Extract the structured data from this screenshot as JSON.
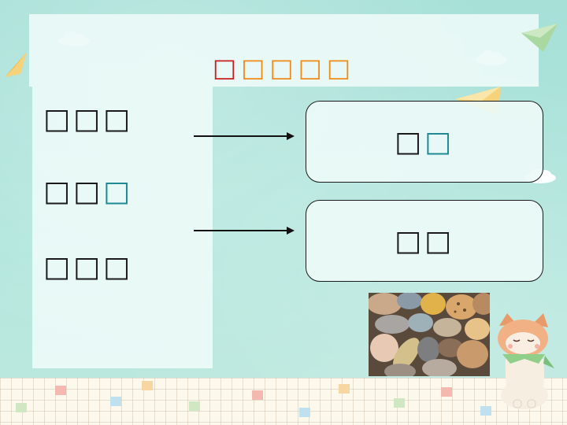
{
  "slide": {
    "title": [
      {
        "char": "□",
        "color": "#c81d1d"
      },
      {
        "char": "□",
        "color": "#f08a1a"
      },
      {
        "char": "□",
        "color": "#f08a1a"
      },
      {
        "char": "□",
        "color": "#f08a1a"
      },
      {
        "char": "□",
        "color": "#f08a1a"
      }
    ],
    "left_words": [
      {
        "text_a": "□□□",
        "text_b": ""
      },
      {
        "text_a": "□□",
        "text_b": "□"
      },
      {
        "text_a": "□□□",
        "text_b": ""
      }
    ],
    "boxes": [
      {
        "text_a": "□",
        "text_b": "□"
      },
      {
        "text_a": "□□",
        "text_b": ""
      }
    ],
    "colors": {
      "accent_teal": "#1f8a94",
      "title_red": "#c81d1d",
      "title_orange": "#f08a1a",
      "background": "#a9e2d9"
    },
    "decorations": [
      "paper-plane-icon",
      "cloud-icon",
      "cat-illustration",
      "pebbles-photo"
    ]
  }
}
